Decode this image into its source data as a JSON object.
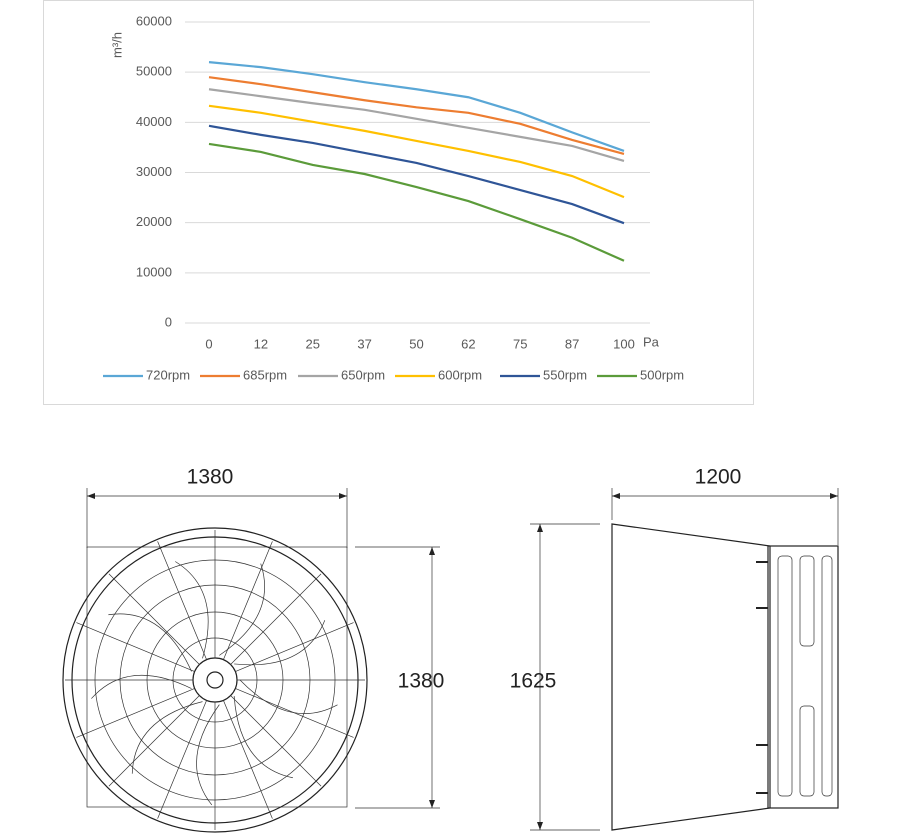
{
  "chart_data": {
    "type": "line",
    "x_label": "Pa",
    "y_label": "m³/h",
    "categories": [
      "0",
      "12",
      "25",
      "37",
      "50",
      "62",
      "75",
      "87",
      "100"
    ],
    "series": [
      {
        "name": "720rpm",
        "color": "#5aa7d6",
        "values": [
          52000,
          51000,
          49600,
          48000,
          46600,
          45000,
          41900,
          38000,
          34300
        ]
      },
      {
        "name": "685rpm",
        "color": "#ed7d31",
        "values": [
          49000,
          47600,
          46000,
          44400,
          43000,
          41900,
          39700,
          36500,
          33700
        ]
      },
      {
        "name": "650rpm",
        "color": "#a5a5a5",
        "values": [
          46600,
          45200,
          43800,
          42500,
          40700,
          38900,
          37100,
          35300,
          32300
        ]
      },
      {
        "name": "600rpm",
        "color": "#ffc000",
        "values": [
          43300,
          41900,
          40100,
          38300,
          36300,
          34300,
          32100,
          29300,
          25100
        ]
      },
      {
        "name": "550rpm",
        "color": "#2f5597",
        "values": [
          39300,
          37500,
          35900,
          33900,
          31900,
          29300,
          26500,
          23700,
          19900
        ]
      },
      {
        "name": "500rpm",
        "color": "#5b9b3a",
        "values": [
          35700,
          34100,
          31500,
          29700,
          27100,
          24300,
          20700,
          17000,
          12400
        ]
      }
    ],
    "ylim": [
      0,
      60000
    ],
    "yticks": [
      0,
      10000,
      20000,
      30000,
      40000,
      50000,
      60000
    ],
    "grid": true,
    "legend": "bottom"
  },
  "drawing": {
    "front_width": "1380",
    "front_height": "1380",
    "side_depth": "1200",
    "side_height": "1625"
  }
}
